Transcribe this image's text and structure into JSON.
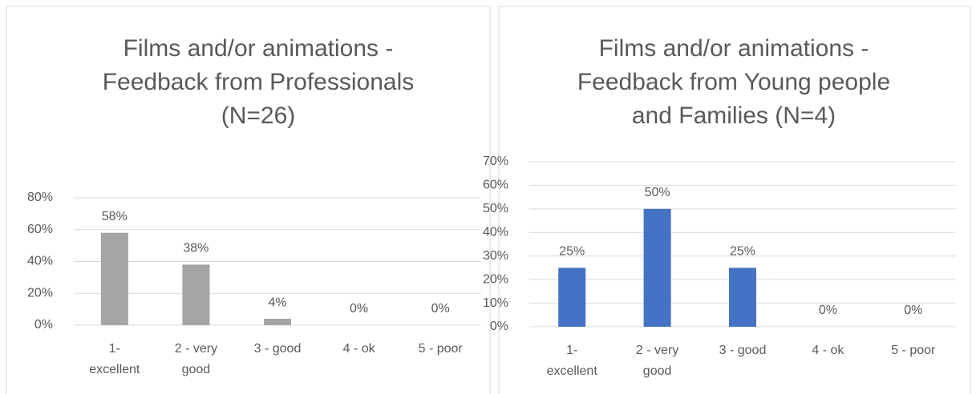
{
  "chart_data": [
    {
      "type": "bar",
      "title": [
        "Films and/or animations -",
        "Feedback from Professionals",
        "(N=26)"
      ],
      "categories": [
        "1- excellent",
        "2 - very good",
        "3 - good",
        "4 - ok",
        "5 - poor"
      ],
      "values": [
        58,
        38,
        4,
        0,
        0
      ],
      "value_labels": [
        "58%",
        "38%",
        "4%",
        "0%",
        "0%"
      ],
      "color": "#a5a5a5",
      "ylim": [
        0,
        80
      ],
      "yticks": [
        {
          "value": 0,
          "label": "0%"
        },
        {
          "value": 20,
          "label": "20%"
        },
        {
          "value": 40,
          "label": "40%"
        },
        {
          "value": 60,
          "label": "60%"
        },
        {
          "value": 80,
          "label": "80%"
        }
      ],
      "grid": true
    },
    {
      "type": "bar",
      "title": [
        "Films and/or animations -",
        "Feedback from Young people",
        "and Families (N=4)"
      ],
      "categories": [
        "1- excellent",
        "2 - very good",
        "3 - good",
        "4 - ok",
        "5 - poor"
      ],
      "values": [
        25,
        50,
        25,
        0,
        0
      ],
      "value_labels": [
        "25%",
        "50%",
        "25%",
        "0%",
        "0%"
      ],
      "color": "#4472c4",
      "ylim": [
        0,
        70
      ],
      "yticks": [
        {
          "value": 0,
          "label": "0%"
        },
        {
          "value": 10,
          "label": "10%"
        },
        {
          "value": 20,
          "label": "20%"
        },
        {
          "value": 30,
          "label": "30%"
        },
        {
          "value": 40,
          "label": "40%"
        },
        {
          "value": 50,
          "label": "50%"
        },
        {
          "value": 60,
          "label": "60%"
        },
        {
          "value": 70,
          "label": "70%"
        }
      ],
      "grid": true
    }
  ]
}
